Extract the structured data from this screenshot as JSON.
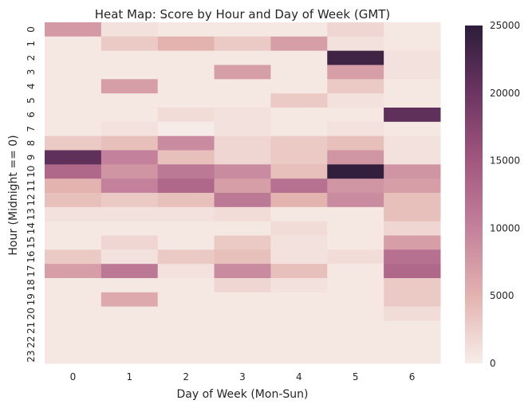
{
  "chart_data": {
    "type": "heatmap",
    "title": "Heat Map: Score by Hour and Day of Week (GMT)",
    "xlabel": "Day of Week (Mon-Sun)",
    "ylabel": "Hour (Midnight == 0)",
    "x_categories": [
      "0",
      "1",
      "2",
      "3",
      "4",
      "5",
      "6"
    ],
    "y_categories": [
      "0",
      "1",
      "2",
      "3",
      "4",
      "5",
      "6",
      "7",
      "8",
      "9",
      "10",
      "11",
      "12",
      "13",
      "14",
      "15",
      "16",
      "17",
      "18",
      "19",
      "20",
      "21",
      "22",
      "23"
    ],
    "values": [
      [
        7500,
        1000,
        500,
        500,
        500,
        2000,
        500
      ],
      [
        500,
        3000,
        5000,
        3000,
        7000,
        1000,
        500
      ],
      [
        500,
        500,
        500,
        500,
        500,
        23500,
        1000
      ],
      [
        500,
        500,
        500,
        7000,
        500,
        7000,
        1000
      ],
      [
        500,
        7000,
        500,
        500,
        500,
        3000,
        500
      ],
      [
        500,
        500,
        500,
        500,
        3000,
        1000,
        500
      ],
      [
        500,
        500,
        1500,
        1000,
        500,
        500,
        21000
      ],
      [
        500,
        1000,
        200,
        1000,
        500,
        1000,
        500
      ],
      [
        3000,
        4000,
        9000,
        2000,
        3000,
        4000,
        1000
      ],
      [
        21000,
        10000,
        4000,
        2000,
        3000,
        8000,
        1000
      ],
      [
        13000,
        8000,
        11000,
        9000,
        4000,
        24500,
        8000
      ],
      [
        5000,
        10000,
        13000,
        7000,
        12000,
        8000,
        7000
      ],
      [
        4000,
        3000,
        4000,
        11000,
        5000,
        9000,
        4000
      ],
      [
        1000,
        1000,
        1000,
        1500,
        500,
        500,
        4000
      ],
      [
        500,
        500,
        500,
        500,
        1500,
        500,
        2000
      ],
      [
        500,
        2000,
        500,
        3000,
        1000,
        500,
        7000
      ],
      [
        3000,
        1000,
        3000,
        4000,
        1000,
        1500,
        12000
      ],
      [
        7000,
        11000,
        1000,
        9000,
        4000,
        500,
        13000
      ],
      [
        500,
        500,
        500,
        2000,
        1000,
        500,
        3000
      ],
      [
        500,
        6000,
        500,
        500,
        500,
        500,
        3000
      ],
      [
        500,
        500,
        500,
        500,
        500,
        500,
        1500
      ],
      [
        500,
        500,
        500,
        500,
        500,
        500,
        500
      ],
      [
        500,
        500,
        500,
        500,
        500,
        500,
        500
      ],
      [
        500,
        500,
        500,
        500,
        500,
        500,
        500
      ]
    ],
    "colorbar": {
      "vmin": 0,
      "vmax": 25000,
      "ticks": [
        0,
        5000,
        10000,
        15000,
        20000,
        25000
      ],
      "colors": [
        "#f7ede8",
        "#e3b3b0",
        "#c3819b",
        "#a2577f",
        "#6c3562",
        "#2c1d3a"
      ]
    }
  }
}
